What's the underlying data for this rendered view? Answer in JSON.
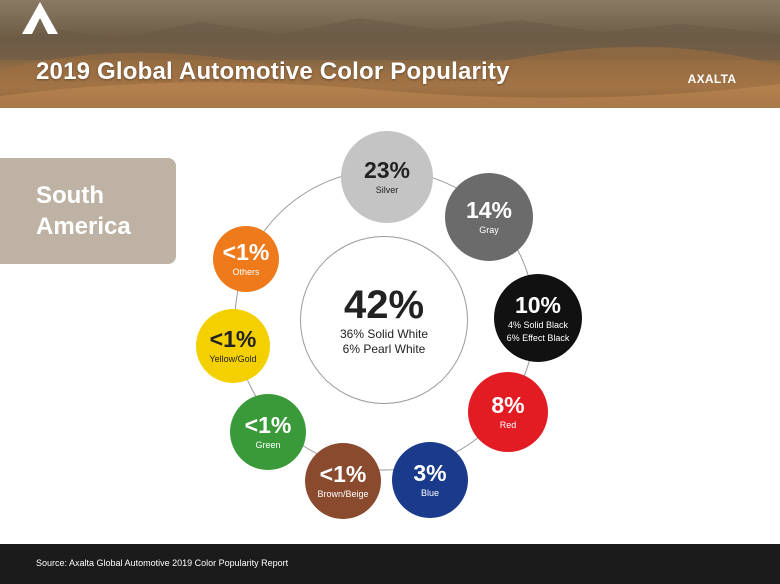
{
  "header": {
    "title": "2019 Global Automotive Color Popularity",
    "logo_text": "AXALTA",
    "logo_icon": "axalta-a-logo-icon"
  },
  "region": {
    "line1": "South",
    "line2": "America"
  },
  "chart_data": {
    "type": "bubble-ring",
    "center": {
      "value": "42%",
      "label": "",
      "details": [
        "36% Solid White",
        "6% Pearl White"
      ],
      "color": "#ffffff"
    },
    "colors": [
      {
        "value": "23%",
        "label": "Silver",
        "color": "#c4c4c4",
        "text_color": "#222222"
      },
      {
        "value": "14%",
        "label": "Gray",
        "color": "#6b6b6b",
        "text_color": "#ffffff"
      },
      {
        "value": "10%",
        "label": "4% Solid Black\n6% Effect Black",
        "color": "#111111",
        "text_color": "#ffffff"
      },
      {
        "value": "8%",
        "label": "Red",
        "color": "#e31b23",
        "text_color": "#ffffff"
      },
      {
        "value": "3%",
        "label": "Blue",
        "color": "#1a3a8c",
        "text_color": "#ffffff"
      },
      {
        "value": "<1%",
        "label": "Brown/Beige",
        "color": "#8a4a2e",
        "text_color": "#ffffff"
      },
      {
        "value": "<1%",
        "label": "Green",
        "color": "#3a9a3a",
        "text_color": "#ffffff"
      },
      {
        "value": "<1%",
        "label": "Yellow/Gold",
        "color": "#f4d000",
        "text_color": "#222222"
      },
      {
        "value": "<1%",
        "label": "Others",
        "color": "#ee7a1b",
        "text_color": "#ffffff"
      }
    ]
  },
  "footer": {
    "source": "Source: Axalta Global Automotive 2019 Color Popularity Report"
  }
}
